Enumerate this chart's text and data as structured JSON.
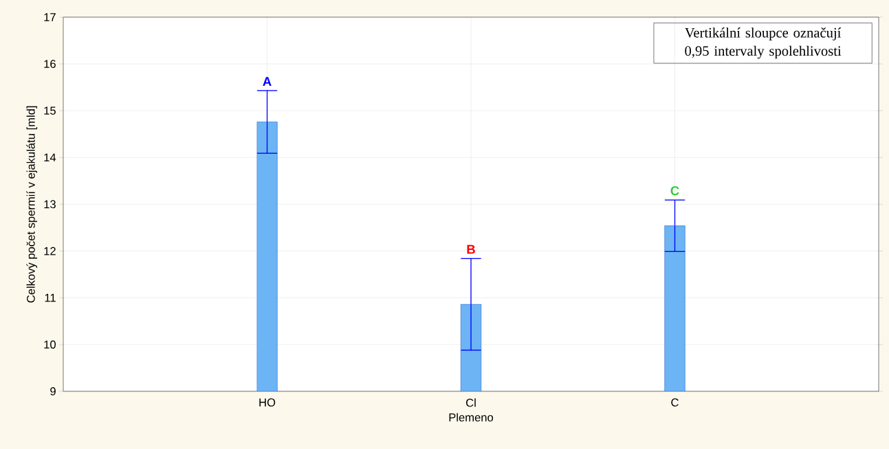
{
  "chart_data": {
    "type": "bar",
    "xlabel": "Plemeno",
    "ylabel": "Celkový počet spermií v ejakulátu [mld]",
    "categories": [
      "HO",
      "Cl",
      "C"
    ],
    "values": [
      14.76,
      10.86,
      12.54
    ],
    "errors": [
      0.67,
      0.98,
      0.55
    ],
    "color": "#6cb4f4",
    "ylim": [
      9,
      17
    ],
    "yticks": [
      9,
      10,
      11,
      12,
      13,
      14,
      15,
      16,
      17
    ],
    "grid": true,
    "annotations": [
      "A",
      "B",
      "C",
      "Vertikální sloupce označují 0,95 intervaly spolehlivosti"
    ]
  }
}
